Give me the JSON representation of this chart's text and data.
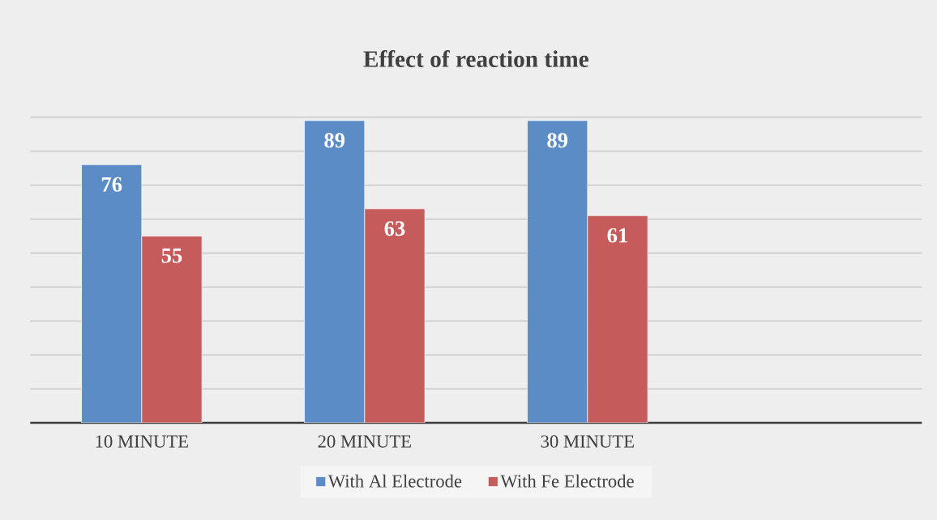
{
  "chart_data": {
    "type": "bar",
    "title": "Effect of reaction time",
    "categories": [
      "10 MINUTE",
      "20 MINUTE",
      "30 MINUTE",
      null
    ],
    "series": [
      {
        "name": "With Al Electrode",
        "color": "#5b8cc6",
        "values": [
          76,
          89,
          89,
          null
        ]
      },
      {
        "name": "With Fe Electrode",
        "color": "#c65b5b",
        "values": [
          55,
          63,
          61,
          null
        ]
      }
    ],
    "ylim": [
      0,
      90
    ],
    "yticks": [
      {
        "value": 0,
        "label": null
      },
      {
        "value": 10,
        "label": null
      },
      {
        "value": 20,
        "label": null
      },
      {
        "value": 30,
        "label": null
      },
      {
        "value": 40,
        "label": null
      },
      {
        "value": 50,
        "label": null
      },
      {
        "value": 60,
        "label": null
      },
      {
        "value": 70,
        "label": null
      },
      {
        "value": 80,
        "label": null
      },
      {
        "value": 90,
        "label": null
      }
    ],
    "tick_labels": "x",
    "grid": "y",
    "data_labels": true,
    "legend": "bottom"
  }
}
